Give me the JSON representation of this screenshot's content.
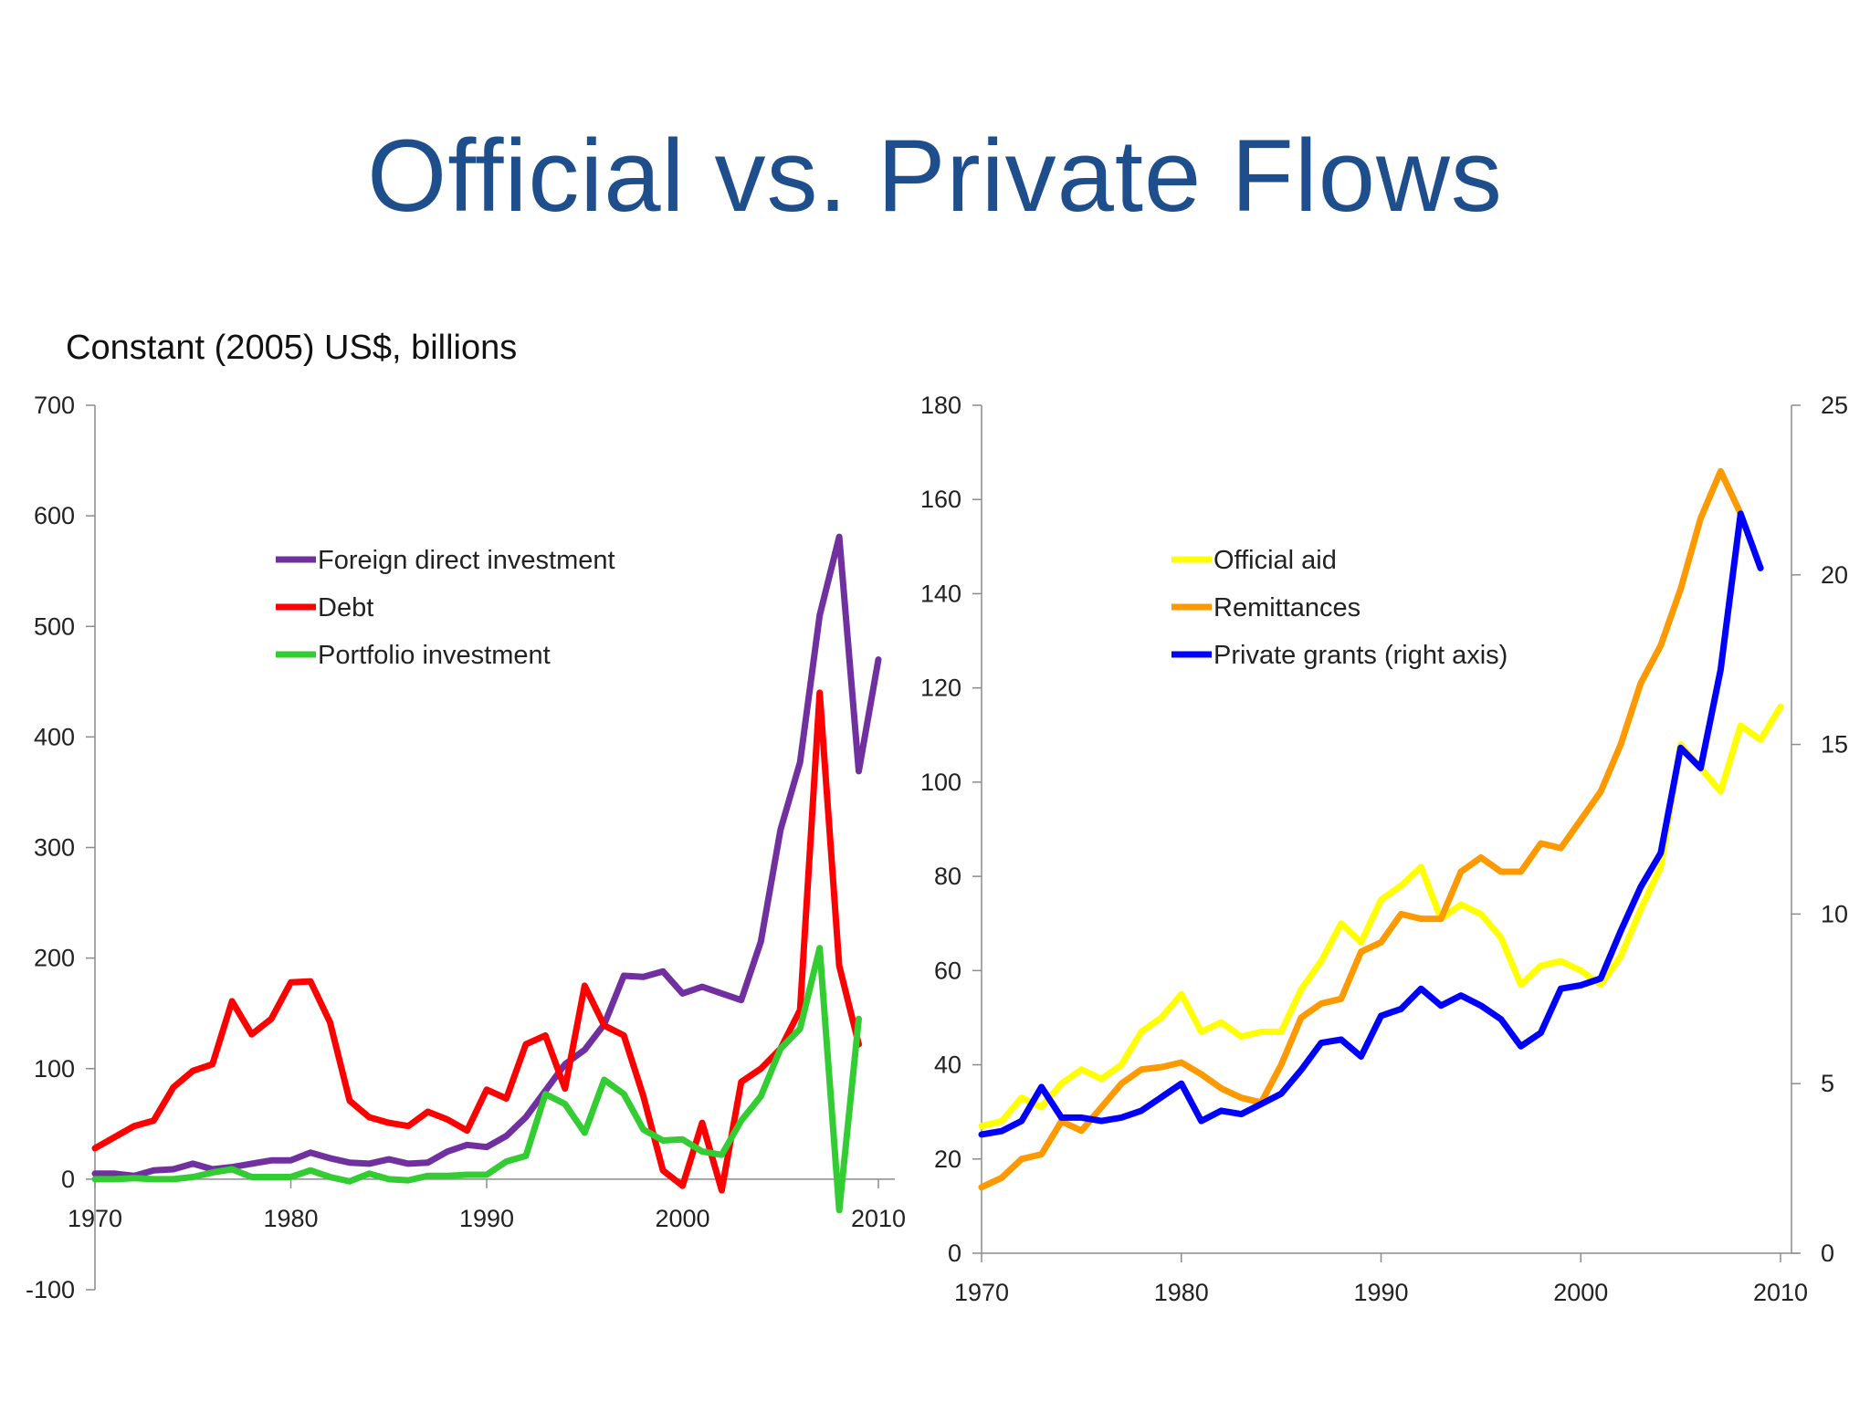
{
  "slide": {
    "title": "Official vs. Private Flows",
    "subtitle": "Constant (2005) US$, billions"
  },
  "chart_data": [
    {
      "type": "line",
      "title": "",
      "xlabel": "",
      "ylabel": "",
      "xlim": [
        1970,
        2010
      ],
      "ylim": [
        -100,
        700
      ],
      "x_ticks": [
        "1970",
        "1980",
        "1990",
        "2000",
        "2010"
      ],
      "y_ticks": [
        "-100",
        "0",
        "100",
        "200",
        "300",
        "400",
        "500",
        "600",
        "700"
      ],
      "legend_position": "top-left",
      "grid": false,
      "x": [
        1970,
        1971,
        1972,
        1973,
        1974,
        1975,
        1976,
        1977,
        1978,
        1979,
        1980,
        1981,
        1982,
        1983,
        1984,
        1985,
        1986,
        1987,
        1988,
        1989,
        1990,
        1991,
        1992,
        1993,
        1994,
        1995,
        1996,
        1997,
        1998,
        1999,
        2000,
        2001,
        2002,
        2003,
        2004,
        2005,
        2006,
        2007,
        2008,
        2009,
        2010
      ],
      "series": [
        {
          "name": "Foreign direct investment",
          "color": "#7030a0",
          "values": [
            5,
            5,
            3,
            8,
            9,
            14,
            9,
            11,
            14,
            17,
            17,
            24,
            19,
            15,
            14,
            18,
            14,
            15,
            25,
            31,
            29,
            39,
            56,
            80,
            104,
            117,
            140,
            184,
            183,
            188,
            168,
            174,
            168,
            162,
            215,
            316,
            377,
            510,
            581,
            369,
            470
          ]
        },
        {
          "name": "Debt",
          "color": "#ff0000",
          "values": [
            28,
            38,
            48,
            53,
            83,
            98,
            104,
            161,
            131,
            145,
            178,
            179,
            142,
            71,
            56,
            51,
            48,
            61,
            54,
            44,
            81,
            73,
            122,
            130,
            82,
            175,
            139,
            130,
            75,
            8,
            -6,
            51,
            -10,
            88,
            100,
            118,
            153,
            440,
            193,
            122,
            null
          ]
        },
        {
          "name": "Portfolio investment",
          "color": "#33cc33",
          "values": [
            0,
            0,
            1,
            0,
            0,
            2,
            6,
            9,
            2,
            2,
            2,
            8,
            2,
            -2,
            5,
            0,
            -1,
            3,
            3,
            4,
            4,
            16,
            21,
            77,
            68,
            42,
            90,
            77,
            45,
            35,
            36,
            25,
            22,
            53,
            75,
            118,
            136,
            209,
            -28,
            145,
            null
          ]
        }
      ]
    },
    {
      "type": "line",
      "title": "",
      "xlabel": "",
      "ylabel": "",
      "xlim": [
        1970,
        2010
      ],
      "ylim": [
        0,
        180
      ],
      "ylim_right": [
        0,
        25
      ],
      "x_ticks": [
        "1970",
        "1980",
        "1990",
        "2000",
        "2010"
      ],
      "y_ticks": [
        "0",
        "20",
        "40",
        "60",
        "80",
        "100",
        "120",
        "140",
        "160",
        "180"
      ],
      "y_ticks_right": [
        "0",
        "5",
        "10",
        "15",
        "20",
        "25"
      ],
      "legend_position": "top-left",
      "grid": false,
      "x": [
        1970,
        1971,
        1972,
        1973,
        1974,
        1975,
        1976,
        1977,
        1978,
        1979,
        1980,
        1981,
        1982,
        1983,
        1984,
        1985,
        1986,
        1987,
        1988,
        1989,
        1990,
        1991,
        1992,
        1993,
        1994,
        1995,
        1996,
        1997,
        1998,
        1999,
        2000,
        2001,
        2002,
        2003,
        2004,
        2005,
        2006,
        2007,
        2008,
        2009,
        2010
      ],
      "series": [
        {
          "name": "Official aid",
          "color": "#ffff00",
          "axis": "left",
          "values": [
            27,
            28,
            33,
            31,
            36,
            39,
            37,
            40,
            47,
            50,
            55,
            47,
            49,
            46,
            47,
            47,
            56,
            62,
            70,
            66,
            75,
            78,
            82,
            71,
            74,
            72,
            67,
            57,
            61,
            62,
            60,
            57,
            63,
            73,
            82,
            108,
            103,
            98,
            112,
            109,
            116
          ]
        },
        {
          "name": "Remittances",
          "color": "#ff9900",
          "axis": "left",
          "values": [
            14,
            16,
            20,
            21,
            28,
            26,
            31,
            36,
            39,
            39.5,
            40.5,
            38,
            35,
            33,
            32,
            40,
            50,
            53,
            54,
            64,
            66,
            72,
            71,
            71,
            81,
            84,
            81,
            81,
            87,
            86,
            92,
            98,
            108,
            121,
            129,
            141,
            156,
            166,
            157,
            null,
            null
          ]
        },
        {
          "name": "Private grants (right axis)",
          "color": "#0000ff",
          "axis": "right",
          "values": [
            3.5,
            3.6,
            3.9,
            4.9,
            4.0,
            4.0,
            3.9,
            4.0,
            4.2,
            4.6,
            5.0,
            3.9,
            4.2,
            4.1,
            4.4,
            4.7,
            5.4,
            6.2,
            6.3,
            5.8,
            7.0,
            7.2,
            7.8,
            7.3,
            7.6,
            7.3,
            6.9,
            6.1,
            6.5,
            7.8,
            7.9,
            8.1,
            9.5,
            10.8,
            11.8,
            14.9,
            14.3,
            17.2,
            21.8,
            20.2,
            null
          ]
        }
      ]
    }
  ]
}
